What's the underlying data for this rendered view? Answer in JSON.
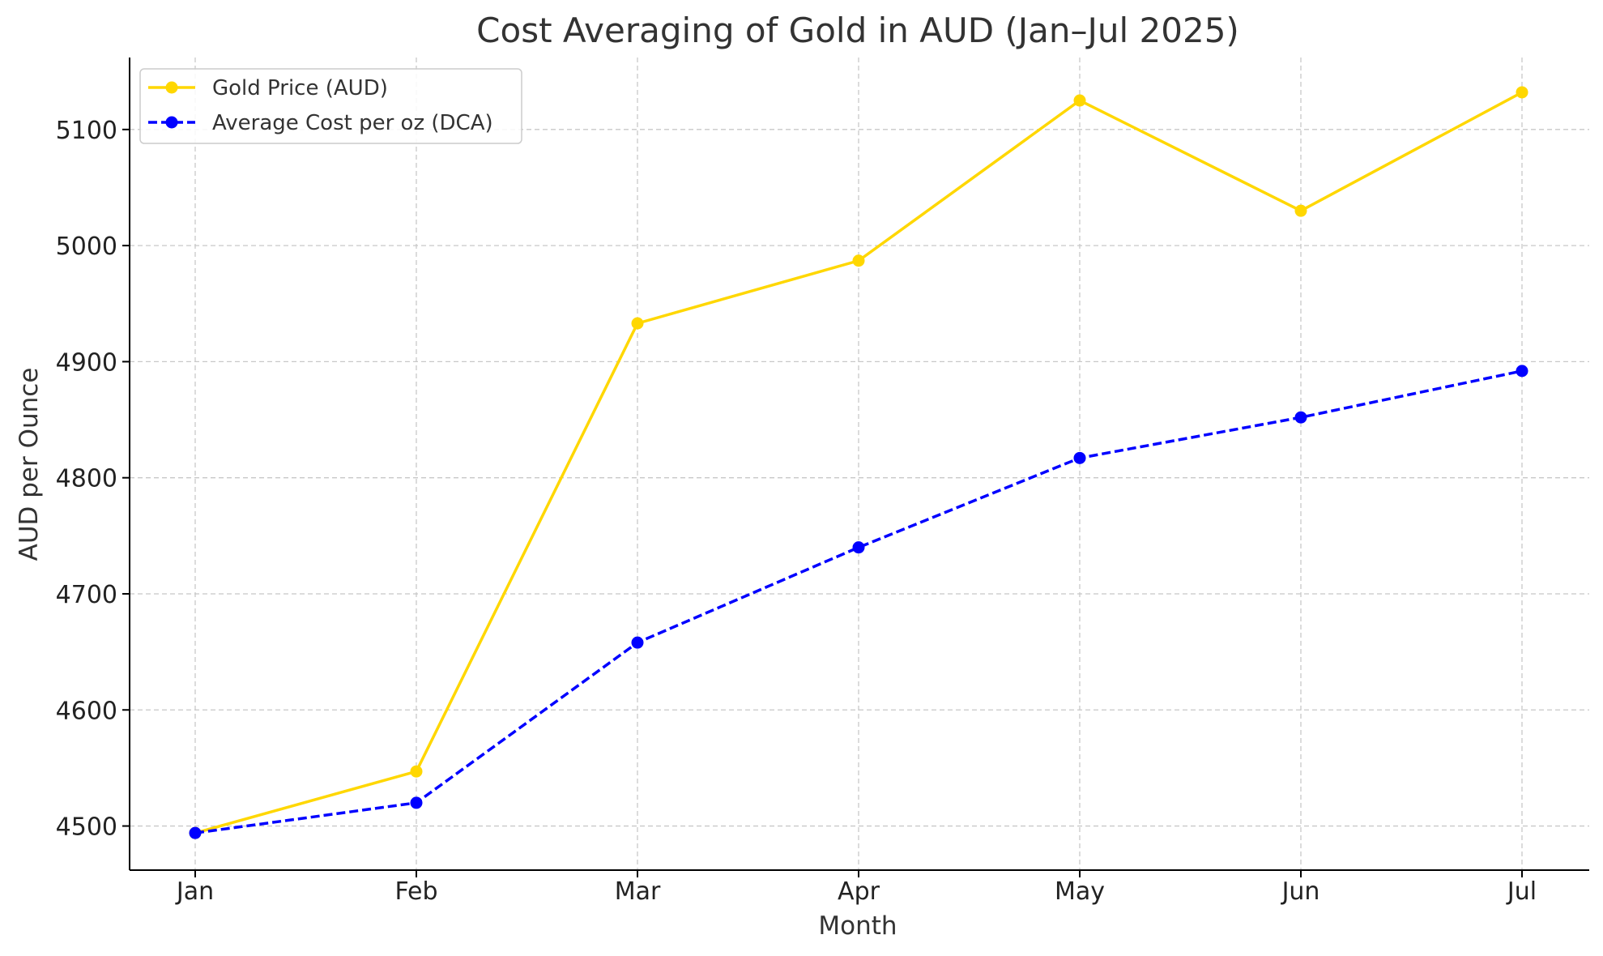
{
  "chart_data": {
    "type": "line",
    "title": "Cost Averaging of Gold in AUD (Jan–Jul 2025)",
    "xlabel": "Month",
    "ylabel": "AUD per Ounce",
    "categories": [
      "Jan",
      "Feb",
      "Mar",
      "Apr",
      "May",
      "Jun",
      "Jul"
    ],
    "ylim": [
      4462,
      5162
    ],
    "yticks": [
      4500,
      4600,
      4700,
      4800,
      4900,
      5000,
      5100
    ],
    "grid": true,
    "legend_position": "top-left",
    "series": [
      {
        "name": "Gold Price (AUD)",
        "color": "#FFD700",
        "line_style": "solid",
        "marker": "circle",
        "values": [
          4494,
          4547,
          4933,
          4987,
          5125,
          5030,
          5132
        ]
      },
      {
        "name": "Average Cost per oz (DCA)",
        "color": "#0000FF",
        "line_style": "dashed",
        "marker": "circle",
        "values": [
          4494,
          4520,
          4658,
          4740,
          4817,
          4852,
          4892
        ]
      }
    ]
  }
}
